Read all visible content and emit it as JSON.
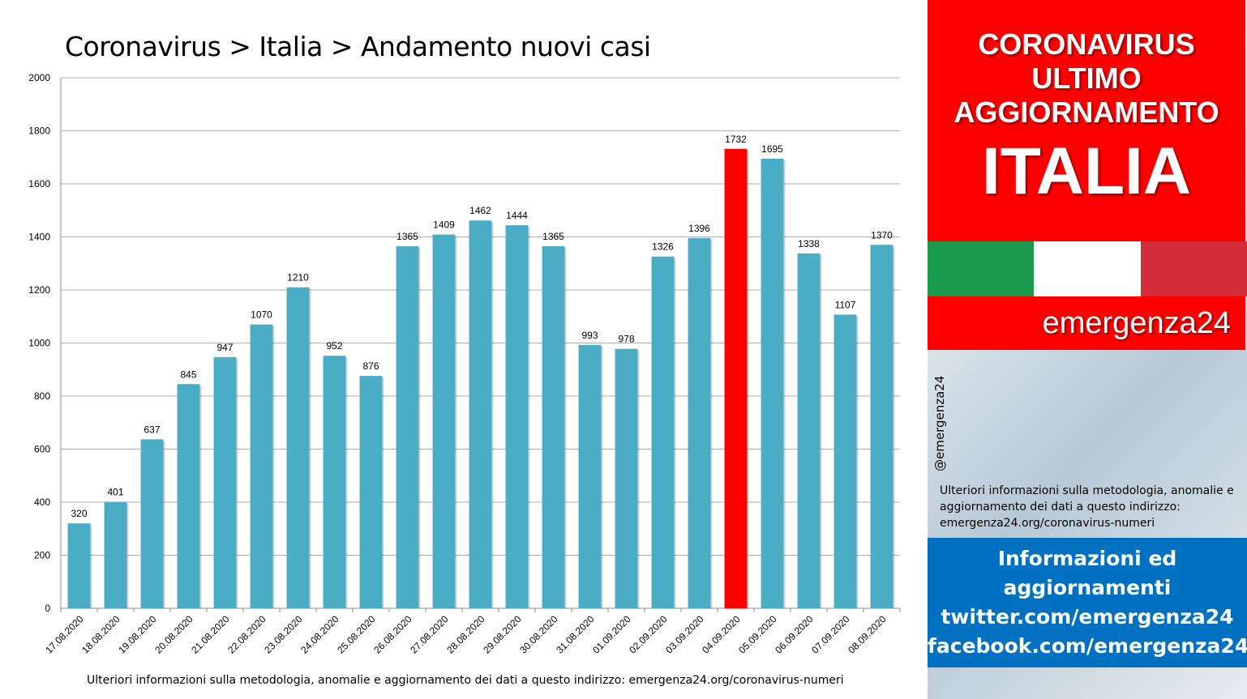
{
  "chart_data": {
    "type": "bar",
    "title": "Coronavirus > Italia > Andamento nuovi casi",
    "categories": [
      "17.08.2020",
      "18.08.2020",
      "19.08.2020",
      "20.08.2020",
      "21.08.2020",
      "22.08.2020",
      "23.08.2020",
      "24.08.2020",
      "25.08.2020",
      "26.08.2020",
      "27.08.2020",
      "28.08.2020",
      "29.08.2020",
      "30.08.2020",
      "31.08.2020",
      "01.09.2020",
      "02.09.2020",
      "03.09.2020",
      "04.09.2020",
      "05.09.2020",
      "06.09.2020",
      "07.09.2020",
      "08.09.2020"
    ],
    "values": [
      320,
      401,
      637,
      845,
      947,
      1070,
      1210,
      952,
      876,
      1365,
      1409,
      1462,
      1444,
      1365,
      993,
      978,
      1326,
      1396,
      1732,
      1695,
      1338,
      1107,
      1370
    ],
    "highlight_category": "04.09.2020",
    "bar_color": "#4bacc6",
    "highlight_color": "#ff0000",
    "ylim": [
      0,
      2000
    ],
    "yticks": [
      0,
      200,
      400,
      600,
      800,
      1000,
      1200,
      1400,
      1600,
      1800,
      2000
    ],
    "grid": true,
    "legend": "none"
  },
  "footer_note": "Ulteriori informazioni sulla metodologia, anomalie e aggiornamento dei dati a questo indirizzo: emergenza24.org/coronavirus-numeri",
  "panel": {
    "header_lines": [
      "CORONAVIRUS",
      "ULTIMO",
      "AGGIORNAMENTO",
      "ITALIA"
    ],
    "brand": "emergenza24",
    "handle": "@emergenza24",
    "method_note": "Ulteriori informazioni sulla metodologia, anomalie e aggiornamento dei dati a questo indirizzo: emergenza24.org/coronavirus-numeri",
    "info_lines": [
      "Informazioni ed",
      "aggiornamenti",
      "twitter.com/emergenza24",
      "facebook.com/emergenza24"
    ],
    "colors": {
      "red": "#ff0000",
      "blue": "#0070c0",
      "flag_green": "#1a9a4a",
      "flag_red": "#d22d39"
    }
  }
}
